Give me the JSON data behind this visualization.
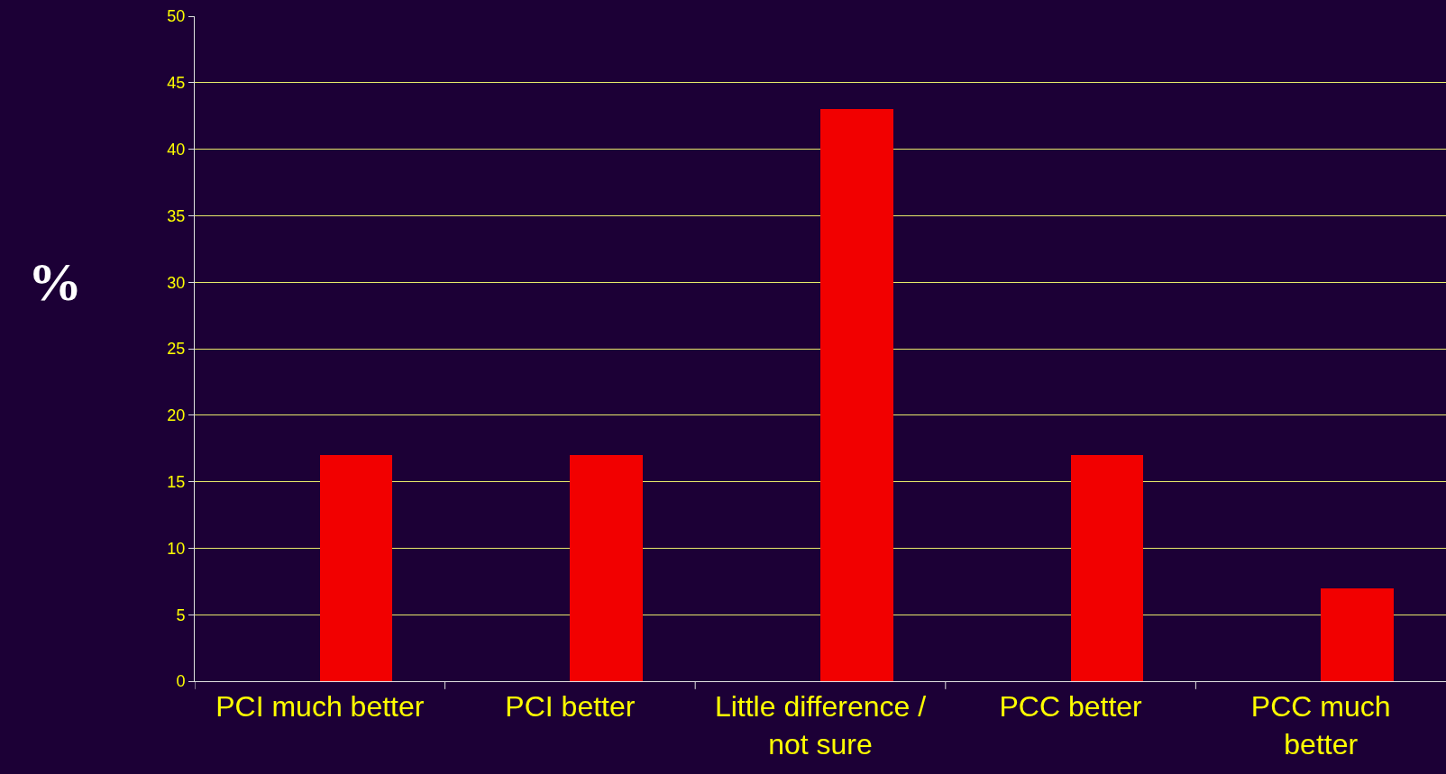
{
  "chart_data": {
    "type": "bar",
    "ylabel": "%",
    "categories": [
      "PCI much better",
      "PCI better",
      "Little difference /\nnot sure",
      "PCC better",
      "PCC much\nbetter"
    ],
    "values": [
      17,
      17,
      43,
      17,
      7
    ],
    "color": "#f20000",
    "ylim": [
      0,
      50
    ],
    "yticks": [
      0,
      5,
      10,
      15,
      20,
      25,
      30,
      35,
      40,
      45,
      50
    ],
    "grid": "y"
  }
}
